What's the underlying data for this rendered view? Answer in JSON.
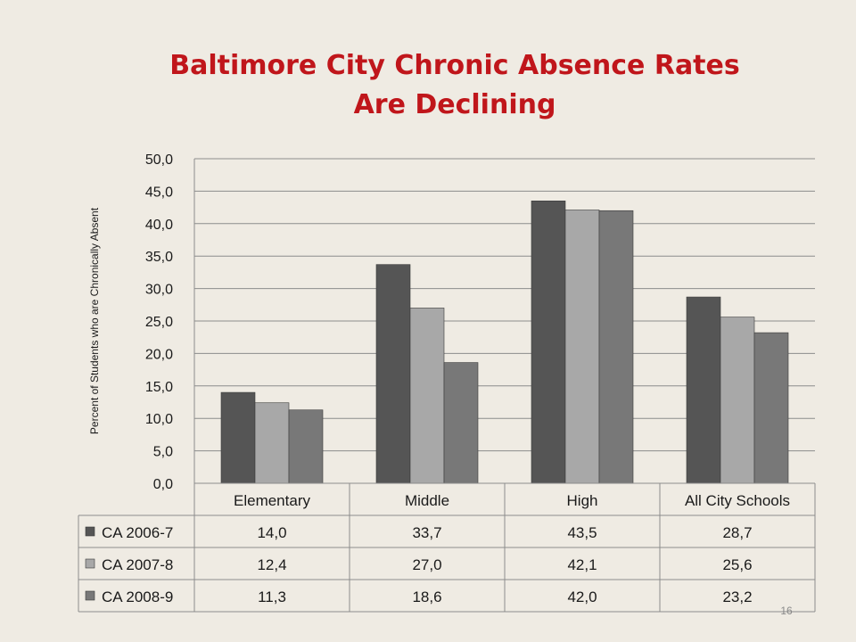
{
  "slide": {
    "title_line1": "Baltimore City Chronic Absence Rates",
    "title_line2": "Are Declining",
    "page_number": "16"
  },
  "chart_data": {
    "type": "bar",
    "title": "Baltimore City Chronic Absence Rates Are Declining",
    "ylabel": "Percent of Students who are Chronically Absent",
    "xlabel": "",
    "ylim": [
      0,
      50
    ],
    "ytick_step": 5,
    "ytick_labels": [
      "0,0",
      "5,0",
      "10,0",
      "15,0",
      "20,0",
      "25,0",
      "30,0",
      "35,0",
      "40,0",
      "45,0",
      "50,0"
    ],
    "grid": true,
    "categories": [
      "Elementary",
      "Middle",
      "High",
      "All City Schools"
    ],
    "series": [
      {
        "name": "CA 2006-7",
        "values": [
          14.0,
          33.7,
          43.5,
          28.7
        ],
        "labels": [
          "14,0",
          "33,7",
          "43,5",
          "28,7"
        ],
        "color": "#555555"
      },
      {
        "name": "CA 2007-8",
        "values": [
          12.4,
          27.0,
          42.1,
          25.6
        ],
        "labels": [
          "12,4",
          "27,0",
          "42,1",
          "25,6"
        ],
        "color": "#a8a8a8"
      },
      {
        "name": "CA 2008-9",
        "values": [
          11.3,
          18.6,
          42.0,
          23.2
        ],
        "labels": [
          "11,3",
          "18,6",
          "42,0",
          "23,2"
        ],
        "color": "#787878"
      }
    ],
    "legend": "data-table"
  }
}
